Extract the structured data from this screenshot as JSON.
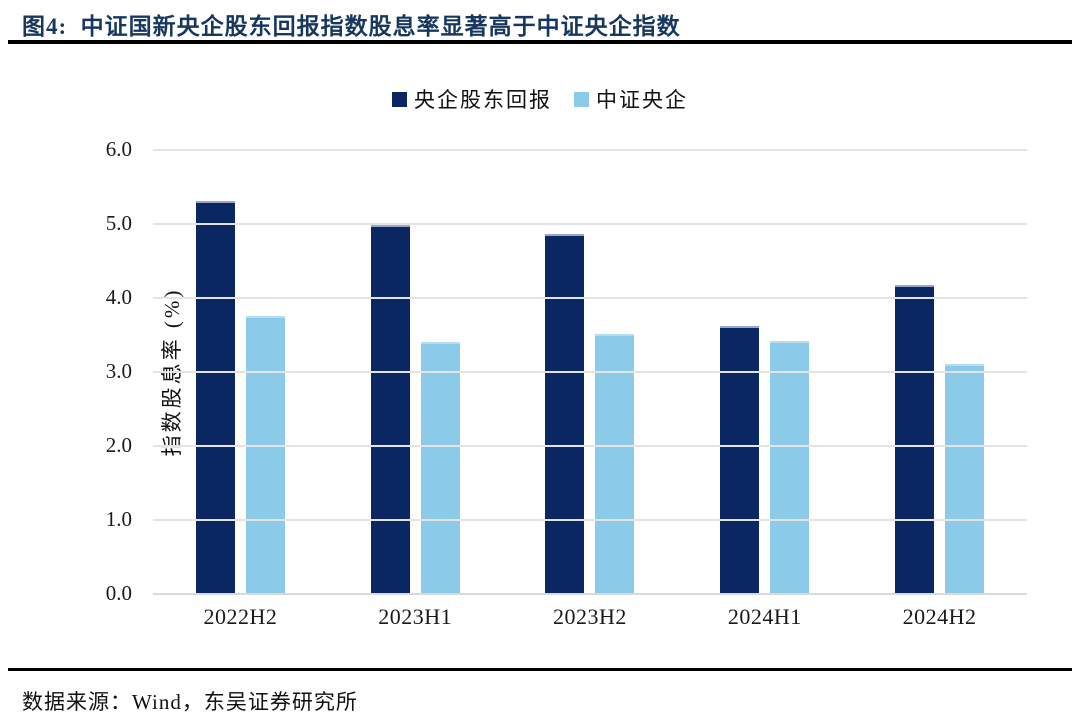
{
  "header": {
    "title": "图4:  中证国新央企股东回报指数股息率显著高于中证央企指数"
  },
  "footer": {
    "source": "数据来源：Wind，东吴证券研究所"
  },
  "colors": {
    "title_navy": "#17375e",
    "bar_dark_navy": "#0a2663",
    "bar_light_blue": "#8ccae9",
    "gridline_gray": "#e4e4e4",
    "rule_black": "#000000"
  },
  "chart_data": {
    "type": "bar",
    "title": "",
    "categories": [
      "2022H2",
      "2023H1",
      "2023H2",
      "2024H1",
      "2024H2"
    ],
    "series": [
      {
        "name": "央企股东回报",
        "color": "#0a2663",
        "values": [
          5.31,
          4.99,
          4.86,
          3.62,
          4.17
        ]
      },
      {
        "name": "中证央企",
        "color": "#8ccae9",
        "values": [
          3.76,
          3.41,
          3.51,
          3.42,
          3.11
        ]
      }
    ],
    "xlabel": "",
    "ylabel": "指数股息率 (%)",
    "ylim": [
      0,
      6
    ],
    "ytick_step": 1.0,
    "ytick_labels": [
      "0.0",
      "1.0",
      "2.0",
      "3.0",
      "4.0",
      "5.0",
      "6.0"
    ],
    "grid": true,
    "legend_position": "top-center"
  }
}
